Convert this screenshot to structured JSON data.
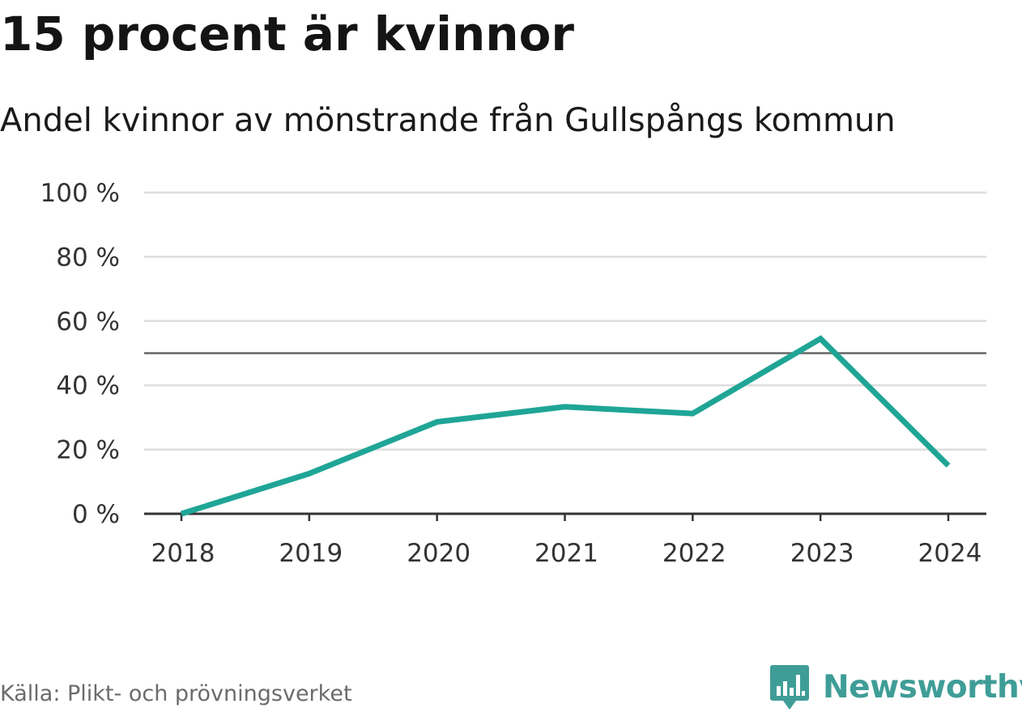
{
  "chart_data": {
    "type": "line",
    "title": "15 procent är kvinnor",
    "subtitle": "Andel kvinnor av mönstrande från Gullspångs kommun",
    "categories": [
      "2018",
      "2019",
      "2020",
      "2021",
      "2022",
      "2023",
      "2024"
    ],
    "series": [
      {
        "name": "Andel kvinnor",
        "values": [
          0,
          12.5,
          28.6,
          33.3,
          31.2,
          54.5,
          15
        ],
        "color": "#1fa596"
      }
    ],
    "reference_line": 50,
    "ylim": [
      0,
      100
    ],
    "yticks": [
      0,
      20,
      40,
      60,
      80,
      100
    ],
    "ytick_labels": [
      "0 %",
      "20 %",
      "40 %",
      "60 %",
      "80 %",
      "100 %"
    ],
    "xlabel": "",
    "ylabel": "",
    "grid": true,
    "grid_color": "#dddddd",
    "axis_color": "#333333",
    "reference_color": "#666666"
  },
  "source": "Källa: Plikt- och prövningsverket",
  "brand": {
    "name": "Newsworthy",
    "color": "#3f9d97",
    "icon": "bar-chart-speech-bubble-icon"
  }
}
